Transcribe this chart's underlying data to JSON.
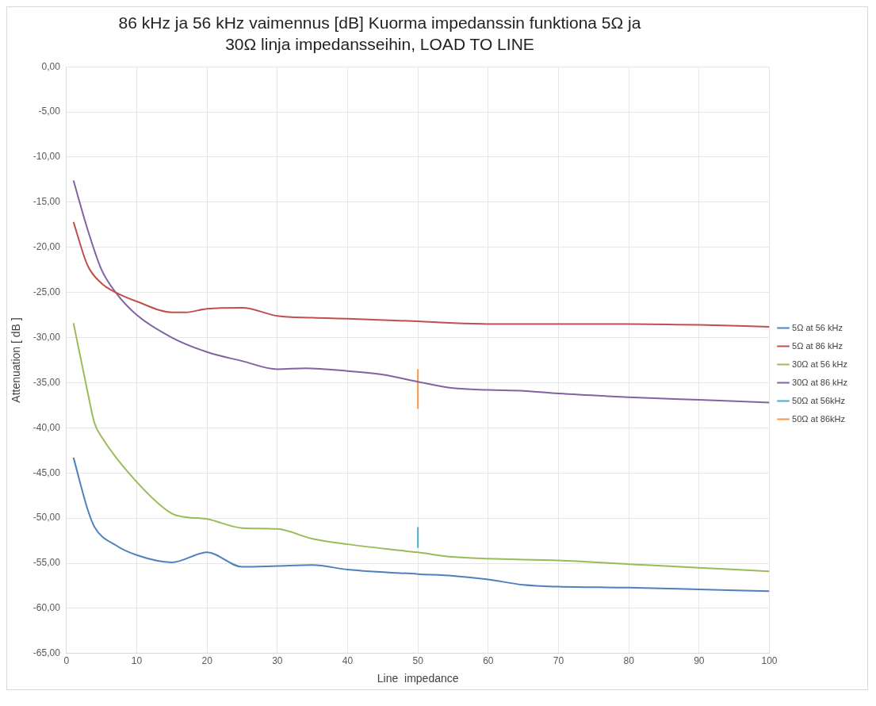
{
  "chart_data": {
    "type": "line",
    "title": "86 kHz ja 56 kHz vaimennus [dB]  Kuorma impedanssin funktiona 5Ω ja 30Ω linja impedansseihin, LOAD TO LINE",
    "xlabel": "Line  impedance",
    "ylabel": "Attenuation [ dB ]",
    "xlim": [
      0,
      100
    ],
    "xticks": [
      0,
      10,
      20,
      30,
      40,
      50,
      60,
      70,
      80,
      90,
      100
    ],
    "ylim": [
      -65,
      0
    ],
    "yticks": [
      {
        "value": 0,
        "label": "0,00"
      },
      {
        "value": -5,
        "label": "-5,00"
      },
      {
        "value": -10,
        "label": "-10,00"
      },
      {
        "value": -15,
        "label": "-15,00"
      },
      {
        "value": -20,
        "label": "-20,00"
      },
      {
        "value": -25,
        "label": "-25,00"
      },
      {
        "value": -30,
        "label": "-30,00"
      },
      {
        "value": -35,
        "label": "-35,00"
      },
      {
        "value": -40,
        "label": "-40,00"
      },
      {
        "value": -45,
        "label": "-45,00"
      },
      {
        "value": -50,
        "label": "-50,00"
      },
      {
        "value": -55,
        "label": "-55,00"
      },
      {
        "value": -60,
        "label": "-60,00"
      },
      {
        "value": -65,
        "label": "-65,00"
      }
    ],
    "grid": true,
    "legend": "right",
    "marker": "none",
    "line_style": "solid",
    "series": [
      {
        "name": "5Ω at 56 kHz",
        "color": "#4f81bd",
        "x": [
          1,
          3,
          4,
          7,
          10,
          15,
          20,
          25,
          30,
          35,
          40,
          50,
          55,
          60,
          65,
          70,
          80,
          90,
          100
        ],
        "values": [
          -43.3,
          -49,
          -51,
          -53,
          -54.1,
          -54.9,
          -53.8,
          -55.4,
          -55.3,
          -55.2,
          -55.7,
          -56.2,
          -56.4,
          -56.8,
          -57.4,
          -57.6,
          -57.7,
          -57.9,
          -58.1
        ]
      },
      {
        "name": "5Ω at 86 kHz",
        "color": "#c0504d",
        "x": [
          1,
          3,
          5,
          7,
          10,
          15,
          17,
          20,
          25,
          30,
          35,
          40,
          50,
          55,
          60,
          80,
          90,
          100
        ],
        "values": [
          -17.2,
          -22,
          -24,
          -25,
          -26,
          -27.2,
          -27.2,
          -26.8,
          -26.7,
          -27.6,
          -27.8,
          -27.9,
          -28.2,
          -28.4,
          -28.5,
          -28.5,
          -28.6,
          -28.8
        ]
      },
      {
        "name": "30Ω at 56 kHz",
        "color": "#9bbb59",
        "x": [
          1,
          3,
          4,
          5,
          10,
          15,
          17,
          20,
          25,
          30,
          35,
          40,
          50,
          55,
          60,
          70,
          80,
          90,
          100
        ],
        "values": [
          -28.4,
          -36,
          -39.5,
          -41,
          -46,
          -49.5,
          -49.9,
          -50.1,
          -51.1,
          -51.2,
          -52.3,
          -52.9,
          -53.8,
          -54.3,
          -54.5,
          -54.7,
          -55.1,
          -55.5,
          -55.9
        ]
      },
      {
        "name": "30Ω at 86 kHz",
        "color": "#8064a2",
        "x": [
          1,
          3,
          5,
          7,
          10,
          15,
          20,
          25,
          30,
          34,
          40,
          45,
          50,
          55,
          60,
          65,
          70,
          80,
          90,
          100
        ],
        "values": [
          -12.6,
          -18,
          -22.5,
          -25,
          -27.5,
          -30,
          -31.6,
          -32.6,
          -33.5,
          -33.4,
          -33.7,
          -34.1,
          -34.9,
          -35.6,
          -35.8,
          -35.9,
          -36.2,
          -36.6,
          -36.9,
          -37.2
        ]
      },
      {
        "name": "50Ω at 56kHz",
        "color": "#4bacc6",
        "x": [
          50,
          50
        ],
        "values": [
          -51,
          -53.3
        ]
      },
      {
        "name": "50Ω at 86kHz",
        "color": "#f79646",
        "x": [
          50,
          50
        ],
        "values": [
          -33.5,
          -37.9
        ]
      }
    ]
  }
}
